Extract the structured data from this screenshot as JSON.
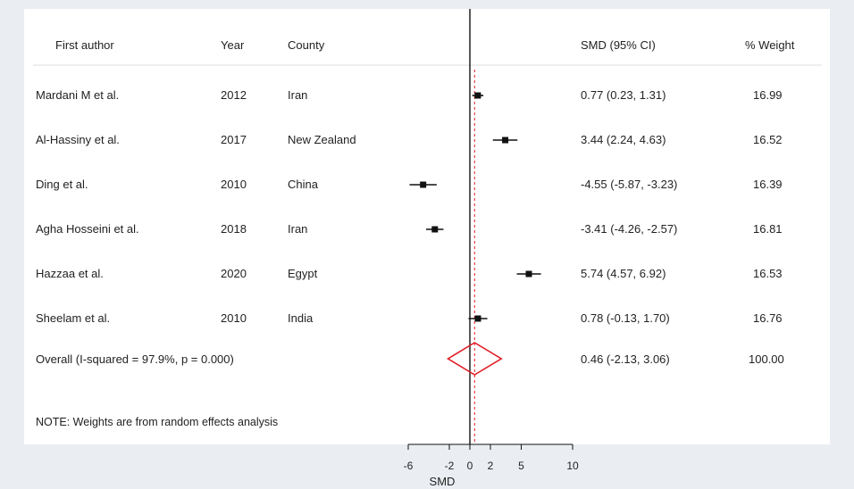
{
  "chart_data": {
    "type": "forest",
    "columns": {
      "author": "First author",
      "year": "Year",
      "country": "County",
      "ci": "SMD (95% CI)",
      "weight": "% Weight"
    },
    "studies": [
      {
        "author": "Mardani M et al.",
        "year": "2012",
        "country": "Iran",
        "smd": 0.77,
        "lower": 0.23,
        "upper": 1.31,
        "ci_text": "0.77 (0.23, 1.31)",
        "weight": "16.99"
      },
      {
        "author": "Al-Hassiny et al.",
        "year": "2017",
        "country": "New Zealand",
        "smd": 3.44,
        "lower": 2.24,
        "upper": 4.63,
        "ci_text": "3.44 (2.24, 4.63)",
        "weight": "16.52"
      },
      {
        "author": "Ding et al.",
        "year": "2010",
        "country": "China",
        "smd": -4.55,
        "lower": -5.87,
        "upper": -3.23,
        "ci_text": "-4.55 (-5.87, -3.23)",
        "weight": "16.39"
      },
      {
        "author": "Agha Hosseini et al.",
        "year": "2018",
        "country": "Iran",
        "smd": -3.41,
        "lower": -4.26,
        "upper": -2.57,
        "ci_text": "-3.41 (-4.26, -2.57)",
        "weight": "16.81"
      },
      {
        "author": "Hazzaa et al.",
        "year": "2020",
        "country": "Egypt",
        "smd": 5.74,
        "lower": 4.57,
        "upper": 6.92,
        "ci_text": "5.74 (4.57, 6.92)",
        "weight": "16.53"
      },
      {
        "author": "Sheelam et al.",
        "year": "2010",
        "country": "India",
        "smd": 0.78,
        "lower": -0.13,
        "upper": 1.7,
        "ci_text": "0.78 (-0.13, 1.70)",
        "weight": "16.76"
      }
    ],
    "overall": {
      "label": "Overall  (I-squared = 97.9%, p = 0.000)",
      "smd": 0.46,
      "lower": -2.13,
      "upper": 3.06,
      "ci_text": "0.46 (-2.13, 3.06)",
      "weight": "100.00"
    },
    "note": "NOTE: Weights are from random effects analysis",
    "xaxis": {
      "label": "SMD",
      "ticks": [
        -6,
        -2,
        0,
        2,
        5,
        10
      ],
      "tick_labels": [
        "-6",
        "-2",
        "0",
        "2",
        "5",
        "10"
      ]
    },
    "reference_line": 0,
    "overall_line_color": "#e01b24",
    "diamond_color": "#e01b24"
  }
}
